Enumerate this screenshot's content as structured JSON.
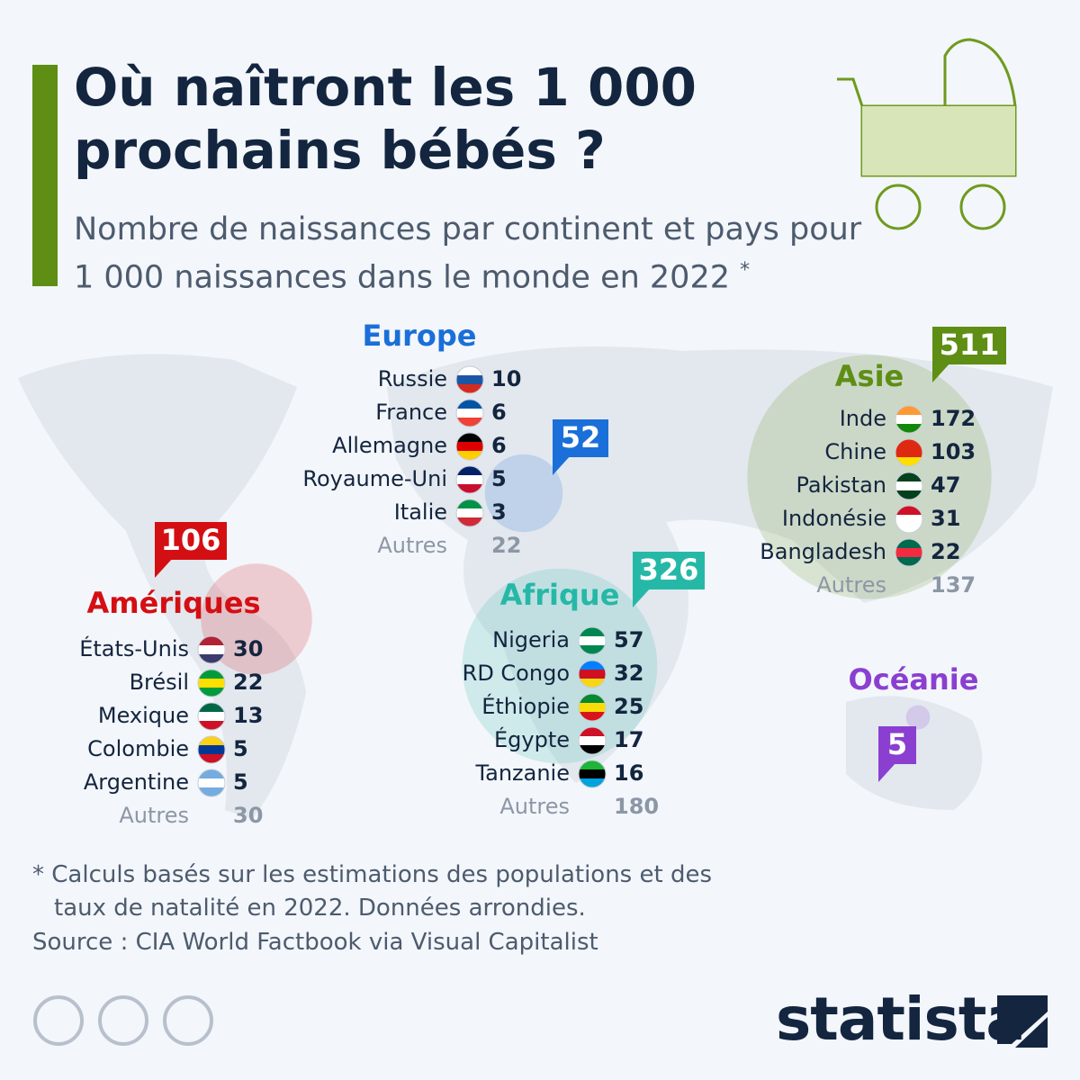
{
  "header": {
    "title": "Où naîtront les 1 000 prochains bébés ?",
    "subtitle": "Nombre de naissances par continent et pays pour 1 000 naissances dans le monde en 2022",
    "subtitle_mark": "*"
  },
  "regions": [
    {
      "name": "Europe",
      "color": "#1a6fd9",
      "total": 52,
      "countries": [
        {
          "name": "Russie",
          "value": 10
        },
        {
          "name": "France",
          "value": 6
        },
        {
          "name": "Allemagne",
          "value": 6
        },
        {
          "name": "Royaume-Uni",
          "value": 5
        },
        {
          "name": "Italie",
          "value": 3
        }
      ],
      "others": {
        "label": "Autres",
        "value": 22
      }
    },
    {
      "name": "Amériques",
      "color": "#d40f14",
      "total": 106,
      "countries": [
        {
          "name": "États-Unis",
          "value": 30
        },
        {
          "name": "Brésil",
          "value": 22
        },
        {
          "name": "Mexique",
          "value": 13
        },
        {
          "name": "Colombie",
          "value": 5
        },
        {
          "name": "Argentine",
          "value": 5
        }
      ],
      "others": {
        "label": "Autres",
        "value": 30
      }
    },
    {
      "name": "Afrique",
      "color": "#26b8a7",
      "total": 326,
      "countries": [
        {
          "name": "Nigeria",
          "value": 57
        },
        {
          "name": "RD Congo",
          "value": 32
        },
        {
          "name": "Éthiopie",
          "value": 25
        },
        {
          "name": "Égypte",
          "value": 17
        },
        {
          "name": "Tanzanie",
          "value": 16
        }
      ],
      "others": {
        "label": "Autres",
        "value": 180
      }
    },
    {
      "name": "Asie",
      "color": "#5e8e14",
      "total": 511,
      "countries": [
        {
          "name": "Inde",
          "value": 172
        },
        {
          "name": "Chine",
          "value": 103
        },
        {
          "name": "Pakistan",
          "value": 47
        },
        {
          "name": "Indonésie",
          "value": 31
        },
        {
          "name": "Bangladesh",
          "value": 22
        }
      ],
      "others": {
        "label": "Autres",
        "value": 137
      }
    },
    {
      "name": "Océanie",
      "color": "#8a3fd1",
      "total": 5,
      "countries": []
    }
  ],
  "footer": {
    "note": "* Calculs basés sur les estimations des populations et des taux de natalité en 2022. Données arrondies.",
    "source": "Source : CIA World Factbook via Visual Capitalist",
    "brand": "statista"
  }
}
